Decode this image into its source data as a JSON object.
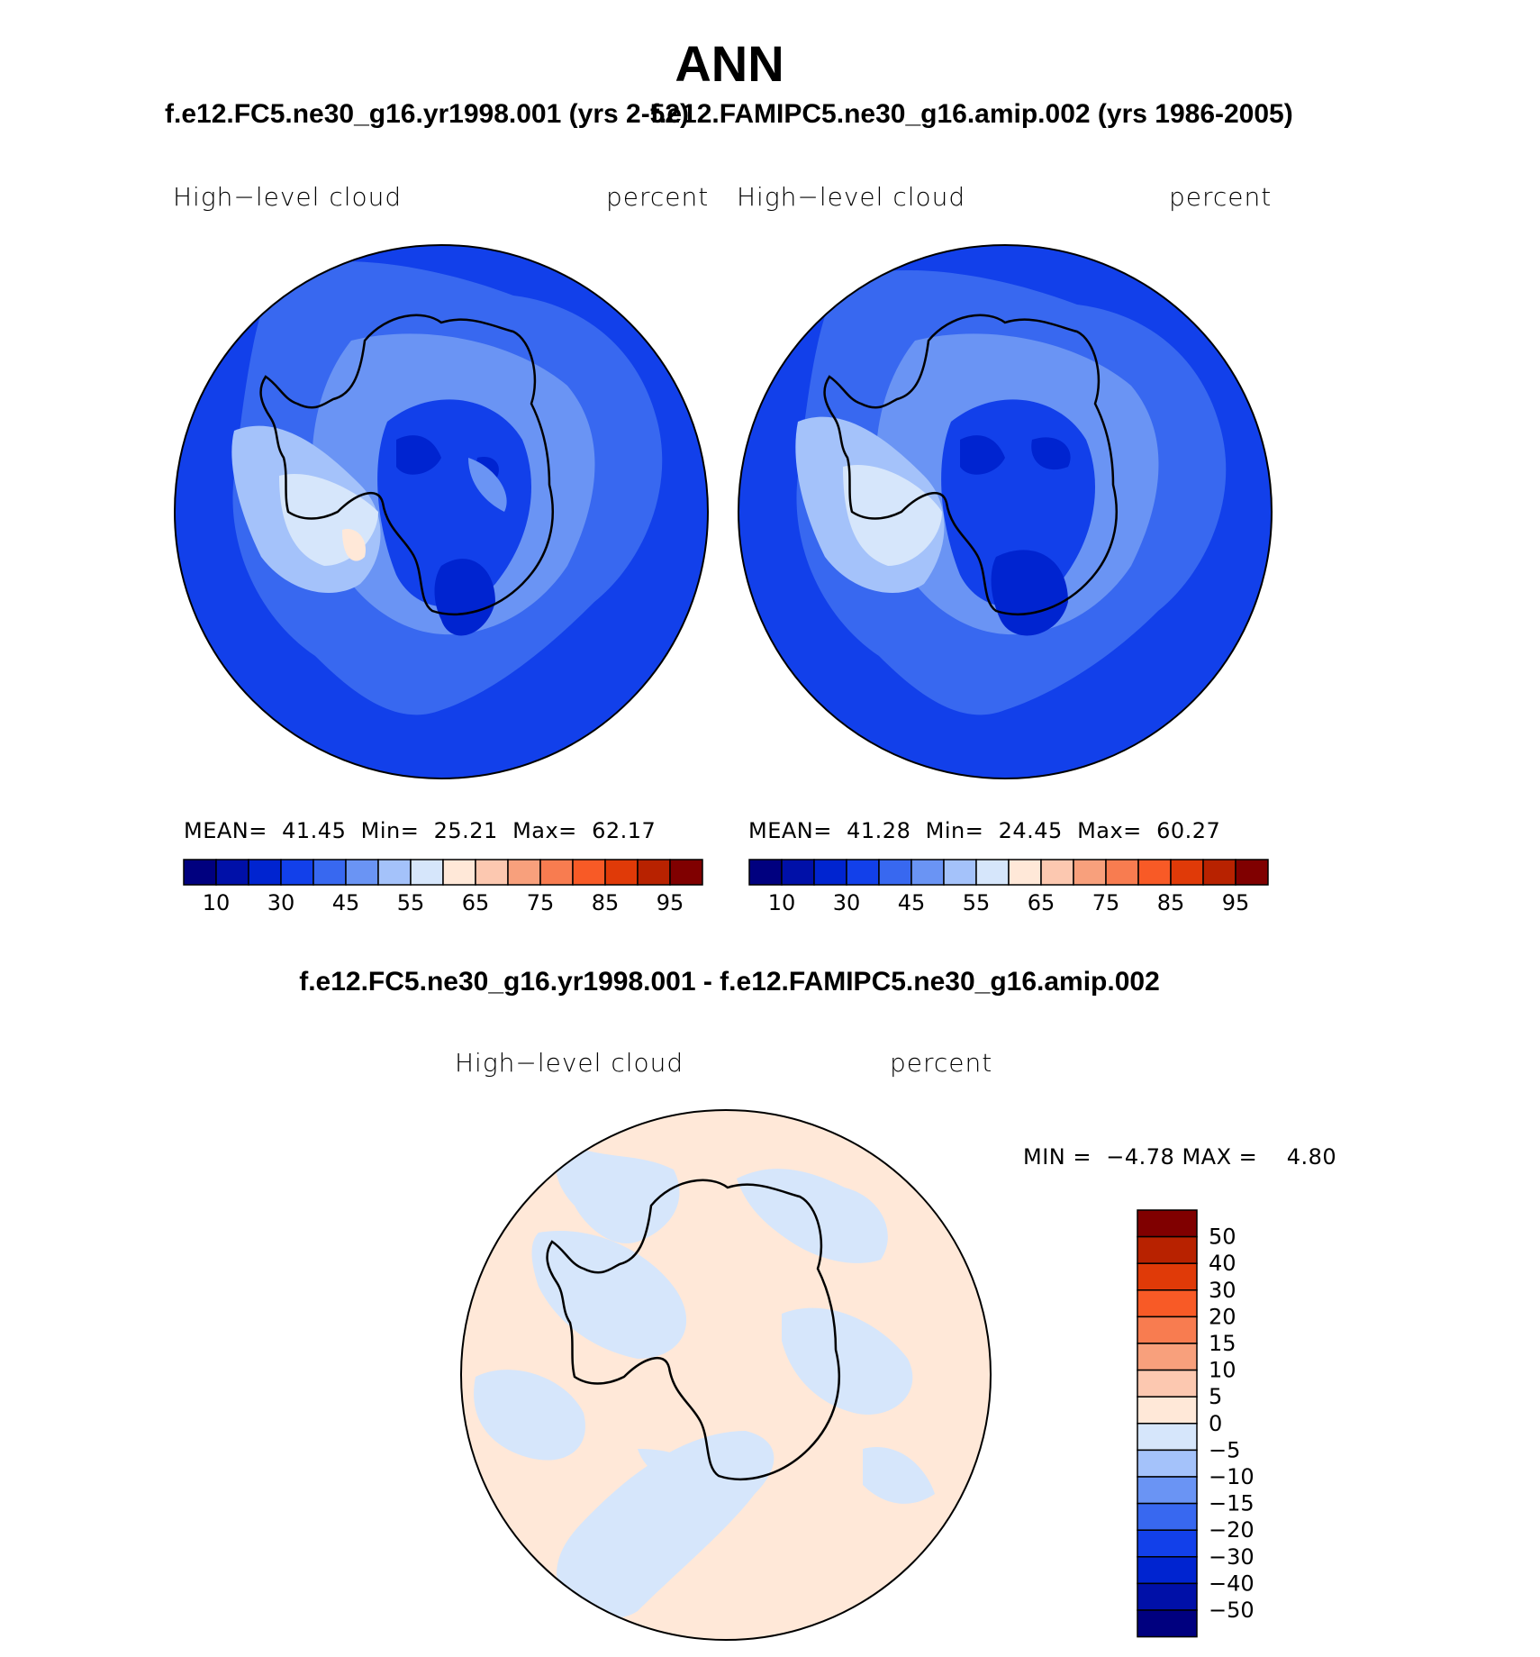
{
  "page_title": "ANN",
  "panels": [
    {
      "case_title": "f.e12.FC5.ne30_g16.yr1998.001 (yrs 2-52)",
      "variable": "High−level  cloud",
      "units": "percent",
      "stats": {
        "mean_label": "MEAN=",
        "mean": "41.45",
        "min_label": "Min=",
        "min": "25.21",
        "max_label": "Max=",
        "max": "62.17"
      },
      "colorbar_labels": [
        "10",
        "30",
        "45",
        "55",
        "65",
        "75",
        "85",
        "95"
      ]
    },
    {
      "case_title": "f.e12.FAMIPC5.ne30_g16.amip.002 (yrs 1986-2005)",
      "variable": "High−level  cloud",
      "units": "percent",
      "stats": {
        "mean_label": "MEAN=",
        "mean": "41.28",
        "min_label": "Min=",
        "min": "24.45",
        "max_label": "Max=",
        "max": "60.27"
      },
      "colorbar_labels": [
        "10",
        "30",
        "45",
        "55",
        "65",
        "75",
        "85",
        "95"
      ]
    }
  ],
  "diff_panel": {
    "case_title": "f.e12.FC5.ne30_g16.yr1998.001 - f.e12.FAMIPC5.ne30_g16.amip.002",
    "variable": "High−level  cloud",
    "units": "percent",
    "minmax": {
      "min_label": "MIN =",
      "min": "−4.78",
      "max_label": "MAX =",
      "max": "4.80"
    },
    "colorbar_labels": [
      "50",
      "40",
      "30",
      "20",
      "15",
      "10",
      "5",
      "0",
      "−5",
      "−10",
      "−15",
      "−20",
      "−30",
      "−40",
      "−50"
    ]
  },
  "colors": {
    "abs_palette": [
      "#00007f",
      "#0010a8",
      "#0024d0",
      "#1240ea",
      "#3868f0",
      "#6a94f4",
      "#a4c2fa",
      "#d6e6fb",
      "#ffe8d8",
      "#fcc8b0",
      "#f8a07c",
      "#f87c50",
      "#f85a26",
      "#e03a08",
      "#b82200",
      "#800000"
    ],
    "diff_palette": [
      "#800000",
      "#b82200",
      "#e03a08",
      "#f85a26",
      "#f87c50",
      "#f8a07c",
      "#fcc8b0",
      "#ffe8d8",
      "#d6e6fb",
      "#a4c2fa",
      "#6a94f4",
      "#3868f0",
      "#1240ea",
      "#0024d0",
      "#0010a8",
      "#00007f"
    ]
  }
}
